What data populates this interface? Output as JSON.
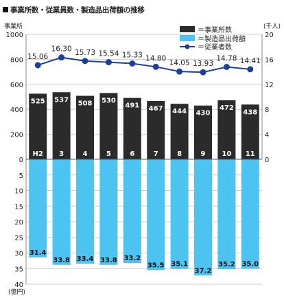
{
  "title": "事業所数・従業員数・製造品出荷額の推移",
  "chart_data": {
    "type": "bar",
    "title": "事業所数・従業員数・製造品出荷額の推移",
    "categories": [
      "H2",
      "3",
      "4",
      "5",
      "6",
      "7",
      "8",
      "9",
      "10",
      "11"
    ],
    "left_axis_label": "事業所",
    "right_axis_label": "(千人)",
    "lower_axis_label": "(億円)",
    "left_ylim": [
      0,
      1000
    ],
    "left_ticks": [
      0,
      200,
      400,
      600,
      800,
      1000
    ],
    "right_ylim": [
      0,
      20
    ],
    "right_ticks": [
      0,
      4,
      8,
      12,
      16,
      20
    ],
    "lower_ylim": [
      0,
      40
    ],
    "lower_ticks": [
      0,
      5,
      10,
      15,
      20,
      25,
      30,
      35,
      40
    ],
    "series": [
      {
        "name": "＝事業所数",
        "type": "bar",
        "axis": "left",
        "values": [
          525,
          537,
          508,
          530,
          491,
          467,
          444,
          430,
          472,
          438
        ]
      },
      {
        "name": "＝製造品出荷額",
        "type": "bar",
        "axis": "lower",
        "values": [
          31.4,
          33.8,
          33.4,
          33.8,
          33.2,
          35.5,
          35.1,
          37.2,
          35.2,
          35.0
        ],
        "labels": [
          "31.4",
          "33.8",
          "33.4",
          "33.8",
          "33.2",
          "35.5",
          "35.1",
          "37.2",
          "35.2",
          "35.0"
        ]
      },
      {
        "name": "＝従業者数",
        "type": "line",
        "axis": "right",
        "values": [
          15.06,
          16.3,
          15.73,
          15.54,
          15.33,
          14.8,
          14.05,
          13.93,
          14.78,
          14.41
        ],
        "labels": [
          "15.06",
          "16.30",
          "15.73",
          "15.54",
          "15.33",
          "14.80",
          "14.05",
          "13.93",
          "14.78",
          "14.41"
        ]
      }
    ],
    "colors": {
      "establishments": "#2b2b2b",
      "shipments": "#4cc3f1",
      "employees": "#1b3f9a",
      "grid": "#cccccc"
    },
    "grid": true,
    "legend": "top-right"
  }
}
